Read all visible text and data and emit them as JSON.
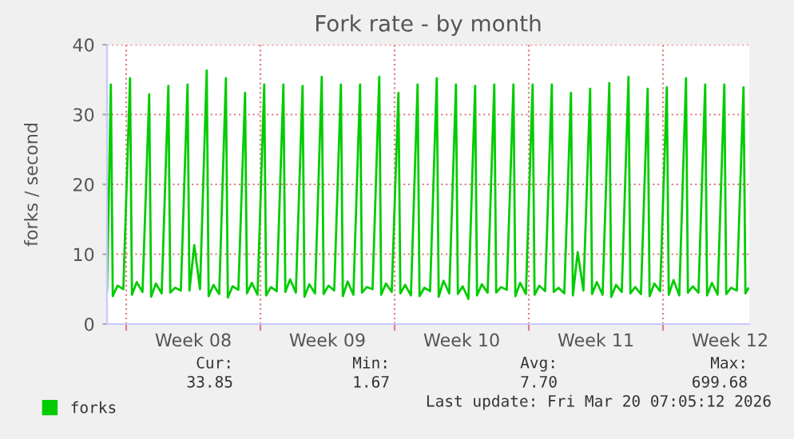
{
  "chart_data": {
    "type": "line",
    "title": "Fork rate - by month",
    "ylabel": "forks / second",
    "xlim": [
      "2026-02-15T00:00",
      "2026-03-20T12:00"
    ],
    "ylim": [
      0,
      40
    ],
    "yticks": [
      0,
      10,
      20,
      30,
      40
    ],
    "xticks": [
      {
        "value": "2026-02-16",
        "label": null
      },
      {
        "value": "2026-02-19T12:00",
        "label": "Week 08"
      },
      {
        "value": "2026-02-23",
        "label": null
      },
      {
        "value": "2026-02-26T12:00",
        "label": "Week 09"
      },
      {
        "value": "2026-03-02",
        "label": null
      },
      {
        "value": "2026-03-05T12:00",
        "label": "Week 10"
      },
      {
        "value": "2026-03-09",
        "label": null
      },
      {
        "value": "2026-03-12T12:00",
        "label": "Week 11"
      },
      {
        "value": "2026-03-16",
        "label": null
      },
      {
        "value": "2026-03-19T12:00",
        "label": "Week 12"
      }
    ],
    "grid": true,
    "legend": "bottom left",
    "series": [
      {
        "name": "forks",
        "color": "#00cc00",
        "x": [
          "2026-02-15T00:00",
          "2026-02-15T04:48",
          "2026-02-15T07:12",
          "2026-02-15T13:12",
          "2026-02-15T20:24",
          "2026-02-16T04:48",
          "2026-02-16T07:12",
          "2026-02-16T13:12",
          "2026-02-16T20:24",
          "2026-02-17T04:48",
          "2026-02-17T07:12",
          "2026-02-17T13:12",
          "2026-02-17T20:24",
          "2026-02-18T04:48",
          "2026-02-18T07:12",
          "2026-02-18T13:12",
          "2026-02-18T20:24",
          "2026-02-19T04:48",
          "2026-02-19T07:12",
          "2026-02-19T13:12",
          "2026-02-19T20:24",
          "2026-02-20T04:48",
          "2026-02-20T07:12",
          "2026-02-20T13:12",
          "2026-02-20T20:24",
          "2026-02-21T04:48",
          "2026-02-21T07:12",
          "2026-02-21T13:12",
          "2026-02-21T20:24",
          "2026-02-22T04:48",
          "2026-02-22T07:12",
          "2026-02-22T13:12",
          "2026-02-22T20:24",
          "2026-02-23T04:48",
          "2026-02-23T07:12",
          "2026-02-23T13:12",
          "2026-02-23T20:24",
          "2026-02-24T04:48",
          "2026-02-24T07:12",
          "2026-02-24T13:12",
          "2026-02-24T20:24",
          "2026-02-25T04:48",
          "2026-02-25T07:12",
          "2026-02-25T13:12",
          "2026-02-25T20:24",
          "2026-02-26T04:48",
          "2026-02-26T07:12",
          "2026-02-26T13:12",
          "2026-02-26T20:24",
          "2026-02-27T04:48",
          "2026-02-27T07:12",
          "2026-02-27T13:12",
          "2026-02-27T20:24",
          "2026-02-28T04:48",
          "2026-02-28T07:12",
          "2026-02-28T13:12",
          "2026-02-28T20:24",
          "2026-03-01T04:48",
          "2026-03-01T07:12",
          "2026-03-01T13:12",
          "2026-03-01T20:24",
          "2026-03-02T04:48",
          "2026-03-02T07:12",
          "2026-03-02T13:12",
          "2026-03-02T20:24",
          "2026-03-03T04:48",
          "2026-03-03T07:12",
          "2026-03-03T13:12",
          "2026-03-03T20:24",
          "2026-03-04T04:48",
          "2026-03-04T07:12",
          "2026-03-04T13:12",
          "2026-03-04T20:24",
          "2026-03-05T04:48",
          "2026-03-05T07:12",
          "2026-03-05T13:12",
          "2026-03-05T20:24",
          "2026-03-06T04:48",
          "2026-03-06T07:12",
          "2026-03-06T13:12",
          "2026-03-06T20:24",
          "2026-03-07T04:48",
          "2026-03-07T07:12",
          "2026-03-07T13:12",
          "2026-03-07T20:24",
          "2026-03-08T04:48",
          "2026-03-08T07:12",
          "2026-03-08T13:12",
          "2026-03-08T20:24",
          "2026-03-09T04:48",
          "2026-03-09T07:12",
          "2026-03-09T13:12",
          "2026-03-09T20:24",
          "2026-03-10T04:48",
          "2026-03-10T07:12",
          "2026-03-10T13:12",
          "2026-03-10T20:24",
          "2026-03-11T04:48",
          "2026-03-11T07:12",
          "2026-03-11T13:12",
          "2026-03-11T20:24",
          "2026-03-12T04:48",
          "2026-03-12T07:12",
          "2026-03-12T13:12",
          "2026-03-12T20:24",
          "2026-03-13T04:48",
          "2026-03-13T07:12",
          "2026-03-13T13:12",
          "2026-03-13T20:24",
          "2026-03-14T04:48",
          "2026-03-14T07:12",
          "2026-03-14T13:12",
          "2026-03-14T20:24",
          "2026-03-15T04:48",
          "2026-03-15T07:12",
          "2026-03-15T13:12",
          "2026-03-15T20:24",
          "2026-03-16T04:48",
          "2026-03-16T07:12",
          "2026-03-16T13:12",
          "2026-03-16T20:24",
          "2026-03-17T04:48",
          "2026-03-17T07:12",
          "2026-03-17T13:12",
          "2026-03-17T20:24",
          "2026-03-18T04:48",
          "2026-03-18T07:12",
          "2026-03-18T13:12",
          "2026-03-18T20:24",
          "2026-03-19T04:48",
          "2026-03-19T07:12",
          "2026-03-19T13:12",
          "2026-03-19T20:24",
          "2026-03-20T04:48",
          "2026-03-20T07:12",
          "2026-03-20T10:48"
        ],
        "values": [
          4.8,
          34.3,
          4.0,
          5.5,
          5.0,
          35.2,
          4.2,
          6.0,
          4.6,
          32.9,
          3.9,
          5.8,
          4.4,
          34.1,
          4.5,
          5.2,
          4.8,
          34.3,
          4.8,
          11.3,
          5.0,
          36.3,
          4.0,
          5.6,
          4.3,
          35.2,
          3.8,
          5.4,
          4.9,
          33.1,
          4.4,
          5.9,
          4.2,
          34.3,
          4.1,
          5.3,
          4.7,
          34.3,
          4.6,
          6.4,
          4.5,
          34.1,
          3.9,
          5.7,
          4.4,
          35.4,
          4.3,
          5.5,
          4.8,
          34.3,
          4.0,
          6.1,
          4.2,
          34.3,
          4.5,
          5.3,
          5.0,
          35.4,
          4.2,
          5.8,
          4.6,
          33.1,
          4.4,
          5.6,
          4.1,
          34.3,
          4.0,
          5.2,
          4.7,
          35.2,
          3.9,
          6.2,
          4.4,
          34.3,
          4.3,
          5.4,
          3.6,
          34.1,
          4.1,
          5.7,
          4.5,
          34.3,
          4.5,
          5.3,
          4.9,
          34.3,
          4.0,
          5.9,
          4.3,
          34.3,
          4.2,
          5.5,
          4.7,
          34.3,
          4.6,
          5.2,
          4.4,
          33.1,
          4.1,
          10.3,
          4.8,
          33.7,
          4.3,
          6.0,
          4.2,
          34.5,
          3.9,
          5.6,
          4.6,
          35.4,
          4.4,
          5.3,
          4.3,
          33.7,
          4.0,
          5.8,
          4.7,
          33.9,
          4.2,
          6.3,
          4.1,
          35.2,
          4.5,
          5.4,
          4.5,
          34.3,
          4.1,
          5.9,
          4.2,
          34.3,
          4.3,
          5.2,
          4.8,
          33.9,
          4.4,
          5.1
        ]
      }
    ],
    "annotations": [
      "Cur:",
      "Min:",
      "Avg:",
      "Max:",
      "33.85",
      "1.67",
      "7.70",
      "699.68",
      "Last update: Fri Mar 20 07:05:12 2026"
    ]
  }
}
